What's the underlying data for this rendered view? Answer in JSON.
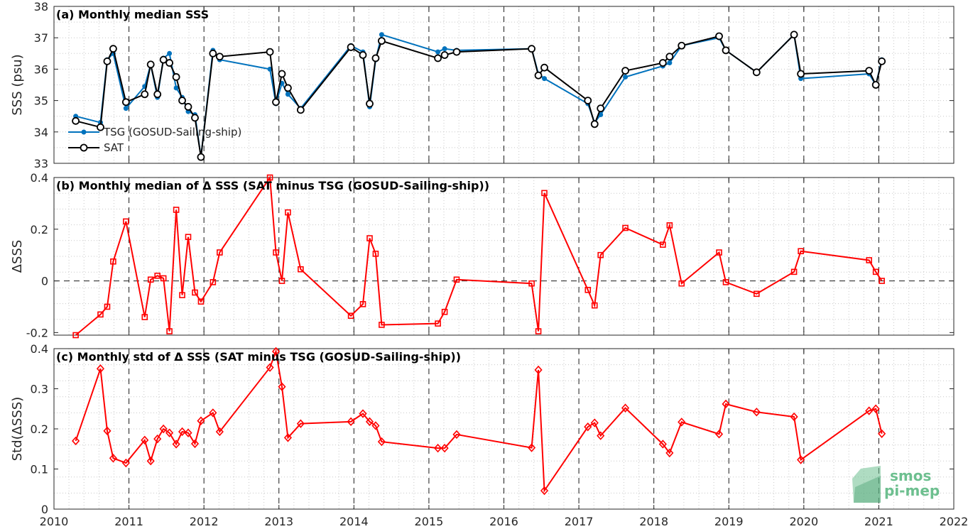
{
  "colors": {
    "tsg": "#0072bd",
    "sat": "#000000",
    "delta": "#ff0000",
    "grid": "#b0b0b0",
    "axis": "#262626",
    "logo": "#6dbf8f"
  },
  "logo": {
    "line1": "smos",
    "line2": "pi-mep"
  },
  "x_axis": {
    "range": [
      2010,
      2022
    ],
    "ticks": [
      "2010",
      "2011",
      "2012",
      "2013",
      "2014",
      "2015",
      "2016",
      "2017",
      "2018",
      "2019",
      "2020",
      "2021",
      "2022"
    ]
  },
  "chart_data": [
    {
      "id": "a",
      "type": "line",
      "title": "(a) Monthly median SSS",
      "ylabel": "SSS (psu)",
      "ylim": [
        33,
        38
      ],
      "yticks": [
        "33",
        "34",
        "35",
        "36",
        "37",
        "38"
      ],
      "legend": {
        "placement": "bottom-left",
        "entries": [
          "TSG (GOSUD-Sailing-ship)",
          "SAT"
        ]
      },
      "series": [
        {
          "name": "TSG (GOSUD-Sailing-ship)",
          "marker": "dot",
          "x": [
            2010.29,
            2010.62,
            2010.71,
            2010.79,
            2010.96,
            2011.21,
            2011.29,
            2011.38,
            2011.46,
            2011.54,
            2011.63,
            2011.71,
            2011.79,
            2011.88,
            2011.96,
            2012.12,
            2012.21,
            2012.88,
            2012.96,
            2013.04,
            2013.12,
            2013.29,
            2013.96,
            2014.12,
            2014.21,
            2014.29,
            2014.37,
            2015.12,
            2015.21,
            2015.37,
            2016.37,
            2016.46,
            2016.54,
            2017.12,
            2017.21,
            2017.29,
            2017.62,
            2018.12,
            2018.21,
            2018.37,
            2018.87,
            2018.96,
            2019.37,
            2019.87,
            2019.96,
            2020.87,
            2020.96,
            2021.04
          ],
          "y": [
            34.5,
            34.3,
            36.3,
            36.5,
            34.75,
            35.45,
            36.15,
            35.1,
            36.35,
            36.5,
            35.4,
            35.1,
            34.65,
            34.55,
            33.2,
            36.6,
            36.3,
            36.0,
            34.9,
            35.55,
            35.2,
            34.75,
            36.75,
            36.55,
            34.8,
            36.3,
            37.1,
            36.55,
            36.65,
            36.6,
            36.65,
            35.85,
            35.7,
            34.9,
            34.3,
            34.55,
            35.75,
            36.1,
            36.2,
            36.75,
            37.0,
            36.6,
            35.9,
            37.1,
            35.7,
            35.85,
            35.5,
            36.3
          ]
        },
        {
          "name": "SAT",
          "marker": "circle",
          "x": [
            2010.29,
            2010.62,
            2010.71,
            2010.79,
            2010.96,
            2011.21,
            2011.29,
            2011.38,
            2011.46,
            2011.54,
            2011.63,
            2011.71,
            2011.79,
            2011.88,
            2011.96,
            2012.12,
            2012.21,
            2012.88,
            2012.96,
            2013.04,
            2013.12,
            2013.29,
            2013.96,
            2014.12,
            2014.21,
            2014.29,
            2014.37,
            2015.12,
            2015.21,
            2015.37,
            2016.37,
            2016.46,
            2016.54,
            2017.12,
            2017.21,
            2017.29,
            2017.62,
            2018.12,
            2018.21,
            2018.37,
            2018.87,
            2018.96,
            2019.37,
            2019.87,
            2019.96,
            2020.87,
            2020.96,
            2021.04
          ],
          "y": [
            34.35,
            34.15,
            36.25,
            36.65,
            34.95,
            35.2,
            36.15,
            35.2,
            36.3,
            36.2,
            35.75,
            35.0,
            34.8,
            34.45,
            33.2,
            36.5,
            36.4,
            36.55,
            34.95,
            35.85,
            35.4,
            34.7,
            36.7,
            36.45,
            34.9,
            36.35,
            36.9,
            36.35,
            36.45,
            36.55,
            36.65,
            35.8,
            36.05,
            35.0,
            34.25,
            34.75,
            35.95,
            36.2,
            36.4,
            36.75,
            37.05,
            36.6,
            35.9,
            37.1,
            35.85,
            35.95,
            35.5,
            36.25
          ]
        }
      ]
    },
    {
      "id": "b",
      "type": "line",
      "title": "(b) Monthly median of Δ SSS (SAT minus TSG (GOSUD-Sailing-ship))",
      "ylabel": "ΔSSS",
      "ylim": [
        -0.21,
        0.4
      ],
      "yticks": [
        "-0.2",
        "0",
        "0.2",
        "0.4"
      ],
      "ytick_values": [
        -0.2,
        0,
        0.2,
        0.4
      ],
      "zero_line": true,
      "series": [
        {
          "marker": "square",
          "x": [
            2010.29,
            2010.62,
            2010.71,
            2010.79,
            2010.96,
            2011.21,
            2011.29,
            2011.38,
            2011.46,
            2011.54,
            2011.63,
            2011.71,
            2011.79,
            2011.88,
            2011.96,
            2012.12,
            2012.21,
            2012.88,
            2012.96,
            2013.04,
            2013.12,
            2013.29,
            2013.96,
            2014.12,
            2014.21,
            2014.29,
            2014.37,
            2015.12,
            2015.21,
            2015.37,
            2016.37,
            2016.46,
            2016.54,
            2017.12,
            2017.21,
            2017.29,
            2017.62,
            2018.12,
            2018.21,
            2018.37,
            2018.87,
            2018.96,
            2019.37,
            2019.87,
            2019.96,
            2020.87,
            2020.96,
            2021.04
          ],
          "y": [
            -0.21,
            -0.13,
            -0.1,
            0.075,
            0.23,
            -0.14,
            0.005,
            0.02,
            0.01,
            -0.195,
            0.275,
            -0.055,
            0.17,
            -0.045,
            -0.08,
            -0.005,
            0.11,
            0.4,
            0.11,
            0.0,
            0.265,
            0.045,
            -0.135,
            -0.09,
            0.165,
            0.105,
            -0.17,
            -0.165,
            -0.12,
            0.005,
            -0.01,
            -0.195,
            0.34,
            -0.035,
            -0.095,
            0.1,
            0.205,
            0.14,
            0.215,
            -0.01,
            0.11,
            -0.005,
            -0.05,
            0.035,
            0.115,
            0.08,
            0.035,
            0.0
          ]
        }
      ]
    },
    {
      "id": "c",
      "type": "line",
      "title": "(c) Monthly std of Δ SSS (SAT minus TSG (GOSUD-Sailing-ship))",
      "ylabel": "Std(ΔSSS)",
      "ylim": [
        0,
        0.4
      ],
      "yticks": [
        "0",
        "0.1",
        "0.2",
        "0.3",
        "0.4"
      ],
      "ytick_values": [
        0,
        0.1,
        0.2,
        0.3,
        0.4
      ],
      "series": [
        {
          "marker": "diamond",
          "x": [
            2010.29,
            2010.62,
            2010.71,
            2010.79,
            2010.96,
            2011.21,
            2011.29,
            2011.38,
            2011.46,
            2011.54,
            2011.63,
            2011.71,
            2011.79,
            2011.88,
            2011.96,
            2012.12,
            2012.21,
            2012.88,
            2012.96,
            2013.04,
            2013.12,
            2013.29,
            2013.96,
            2014.12,
            2014.21,
            2014.29,
            2014.37,
            2015.12,
            2015.21,
            2015.37,
            2016.37,
            2016.46,
            2016.54,
            2017.12,
            2017.21,
            2017.29,
            2017.62,
            2018.12,
            2018.21,
            2018.37,
            2018.87,
            2018.96,
            2019.37,
            2019.87,
            2019.96,
            2020.87,
            2020.96,
            2021.04
          ],
          "y": [
            0.17,
            0.35,
            0.195,
            0.127,
            0.115,
            0.172,
            0.12,
            0.175,
            0.2,
            0.19,
            0.162,
            0.193,
            0.19,
            0.163,
            0.22,
            0.24,
            0.193,
            0.353,
            0.393,
            0.305,
            0.178,
            0.213,
            0.218,
            0.238,
            0.218,
            0.208,
            0.168,
            0.152,
            0.152,
            0.186,
            0.153,
            0.347,
            0.046,
            0.205,
            0.215,
            0.183,
            0.252,
            0.162,
            0.14,
            0.217,
            0.187,
            0.262,
            0.242,
            0.23,
            0.123,
            0.245,
            0.25,
            0.188
          ]
        }
      ]
    }
  ]
}
